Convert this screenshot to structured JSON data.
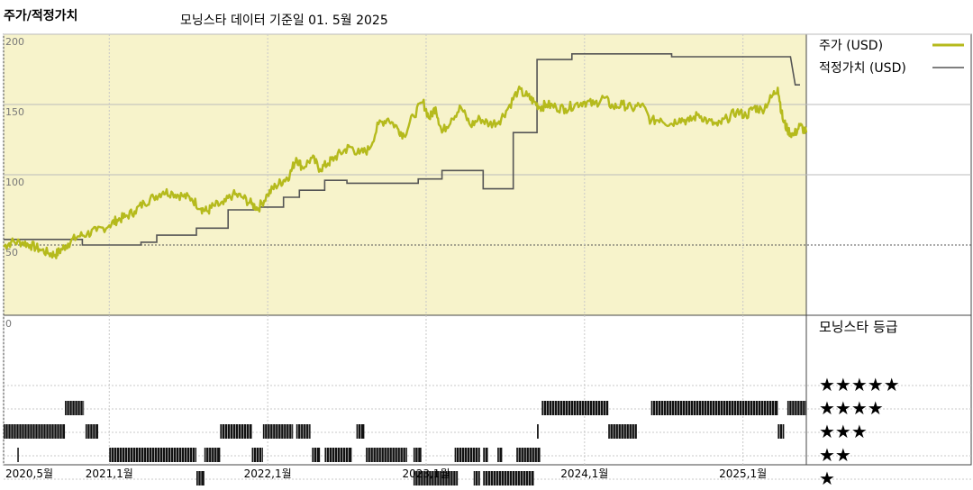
{
  "header": {
    "title": "주가/적정가치",
    "subtitle": "모닝스타 데이터 기준일 01. 5월 2025"
  },
  "colors": {
    "price": "#b5ba1c",
    "fair_value": "#555555",
    "plot_bg": "#f7f3cb",
    "grid": "#bdbdbd",
    "rating_bar": "#111111"
  },
  "chart_data": {
    "type": "line",
    "title": "주가/적정가치",
    "subtitle": "모닝스타 데이터 기준일 01. 5월 2025",
    "ylim": [
      0,
      200
    ],
    "y_ticks": [
      200,
      150,
      100,
      50
    ],
    "x_ticks": [
      {
        "label": "2020,5월",
        "t": 2020.333
      },
      {
        "label": "2021,1월",
        "t": 2021.0
      },
      {
        "label": "2022,1월",
        "t": 2022.0
      },
      {
        "label": "2023,1월",
        "t": 2023.0
      },
      {
        "label": "2024,1월",
        "t": 2024.0
      },
      {
        "label": "2025,1월",
        "t": 2025.0
      }
    ],
    "x_range": [
      2020.333,
      2025.4
    ],
    "series": [
      {
        "name": "주가 (USD)",
        "points": [
          [
            2020.333,
            49
          ],
          [
            2020.38,
            52
          ],
          [
            2020.45,
            52
          ],
          [
            2020.5,
            50
          ],
          [
            2020.56,
            47
          ],
          [
            2020.62,
            44
          ],
          [
            2020.66,
            43
          ],
          [
            2020.7,
            47
          ],
          [
            2020.74,
            51
          ],
          [
            2020.8,
            56
          ],
          [
            2020.86,
            58
          ],
          [
            2020.92,
            60
          ],
          [
            2021.0,
            64
          ],
          [
            2021.05,
            68
          ],
          [
            2021.1,
            70
          ],
          [
            2021.16,
            74
          ],
          [
            2021.22,
            80
          ],
          [
            2021.28,
            84
          ],
          [
            2021.34,
            88
          ],
          [
            2021.4,
            87
          ],
          [
            2021.46,
            85
          ],
          [
            2021.52,
            83
          ],
          [
            2021.58,
            76
          ],
          [
            2021.62,
            74
          ],
          [
            2021.66,
            78
          ],
          [
            2021.72,
            79
          ],
          [
            2021.78,
            86
          ],
          [
            2021.84,
            84
          ],
          [
            2021.9,
            79
          ],
          [
            2021.94,
            76
          ],
          [
            2022.0,
            86
          ],
          [
            2022.05,
            92
          ],
          [
            2022.1,
            96
          ],
          [
            2022.14,
            100
          ],
          [
            2022.18,
            112
          ],
          [
            2022.22,
            105
          ],
          [
            2022.28,
            112
          ],
          [
            2022.33,
            104
          ],
          [
            2022.38,
            108
          ],
          [
            2022.42,
            112
          ],
          [
            2022.48,
            117
          ],
          [
            2022.52,
            120
          ],
          [
            2022.58,
            115
          ],
          [
            2022.64,
            118
          ],
          [
            2022.7,
            136
          ],
          [
            2022.76,
            140
          ],
          [
            2022.82,
            133
          ],
          [
            2022.86,
            128
          ],
          [
            2022.92,
            142
          ],
          [
            2022.98,
            152
          ],
          [
            2023.02,
            140
          ],
          [
            2023.06,
            148
          ],
          [
            2023.1,
            130
          ],
          [
            2023.16,
            140
          ],
          [
            2023.22,
            148
          ],
          [
            2023.28,
            135
          ],
          [
            2023.34,
            140
          ],
          [
            2023.4,
            136
          ],
          [
            2023.46,
            138
          ],
          [
            2023.52,
            148
          ],
          [
            2023.58,
            160
          ],
          [
            2023.64,
            156
          ],
          [
            2023.68,
            152
          ],
          [
            2023.72,
            148
          ],
          [
            2023.76,
            150
          ],
          [
            2023.82,
            148
          ],
          [
            2023.88,
            147
          ],
          [
            2023.94,
            150
          ],
          [
            2024.0,
            152
          ],
          [
            2024.06,
            150
          ],
          [
            2024.12,
            155
          ],
          [
            2024.18,
            148
          ],
          [
            2024.24,
            150
          ],
          [
            2024.3,
            147
          ],
          [
            2024.36,
            150
          ],
          [
            2024.42,
            138
          ],
          [
            2024.48,
            140
          ],
          [
            2024.54,
            136
          ],
          [
            2024.6,
            140
          ],
          [
            2024.66,
            138
          ],
          [
            2024.72,
            143
          ],
          [
            2024.78,
            138
          ],
          [
            2024.84,
            135
          ],
          [
            2024.9,
            140
          ],
          [
            2024.96,
            145
          ],
          [
            2025.02,
            142
          ],
          [
            2025.07,
            148
          ],
          [
            2025.12,
            146
          ],
          [
            2025.18,
            155
          ],
          [
            2025.22,
            162
          ],
          [
            2025.25,
            140
          ],
          [
            2025.28,
            132
          ],
          [
            2025.32,
            128
          ],
          [
            2025.36,
            135
          ],
          [
            2025.4,
            130
          ]
        ]
      },
      {
        "name": "적정가치 (USD)",
        "points": [
          [
            2020.333,
            54
          ],
          [
            2020.83,
            54
          ],
          [
            2020.83,
            50
          ],
          [
            2021.2,
            50
          ],
          [
            2021.2,
            52
          ],
          [
            2021.3,
            52
          ],
          [
            2021.3,
            57
          ],
          [
            2021.55,
            57
          ],
          [
            2021.55,
            62
          ],
          [
            2021.75,
            62
          ],
          [
            2021.75,
            75
          ],
          [
            2021.95,
            75
          ],
          [
            2021.95,
            77
          ],
          [
            2022.1,
            77
          ],
          [
            2022.1,
            84
          ],
          [
            2022.2,
            84
          ],
          [
            2022.2,
            89
          ],
          [
            2022.36,
            89
          ],
          [
            2022.36,
            96
          ],
          [
            2022.5,
            96
          ],
          [
            2022.5,
            94
          ],
          [
            2022.95,
            94
          ],
          [
            2022.95,
            97
          ],
          [
            2023.1,
            97
          ],
          [
            2023.1,
            103
          ],
          [
            2023.36,
            103
          ],
          [
            2023.36,
            90
          ],
          [
            2023.55,
            90
          ],
          [
            2023.55,
            130
          ],
          [
            2023.7,
            130
          ],
          [
            2023.7,
            182
          ],
          [
            2023.92,
            182
          ],
          [
            2023.92,
            186
          ],
          [
            2024.55,
            186
          ],
          [
            2024.55,
            184
          ],
          [
            2025.3,
            184
          ],
          [
            2025.33,
            164
          ],
          [
            2025.36,
            164
          ]
        ]
      }
    ],
    "rating_chart": {
      "title": "모닝스타 등급",
      "zero_label": "0",
      "levels": [
        "★★★★★",
        "★★★★",
        "★★★",
        "★★",
        "★"
      ],
      "segments": [
        {
          "stars": 3,
          "t0": 2020.333,
          "t1": 2020.72
        },
        {
          "stars": 4,
          "t0": 2020.72,
          "t1": 2020.84
        },
        {
          "stars": 3,
          "t0": 2020.85,
          "t1": 2020.93
        },
        {
          "stars": 2,
          "t0": 2020.42,
          "t1": 2020.425
        },
        {
          "stars": 2,
          "t0": 2021.0,
          "t1": 2021.55
        },
        {
          "stars": 1,
          "t0": 2021.55,
          "t1": 2021.6
        },
        {
          "stars": 2,
          "t0": 2021.6,
          "t1": 2021.7
        },
        {
          "stars": 3,
          "t0": 2021.7,
          "t1": 2021.9
        },
        {
          "stars": 2,
          "t0": 2021.9,
          "t1": 2021.97
        },
        {
          "stars": 3,
          "t0": 2021.97,
          "t1": 2022.16
        },
        {
          "stars": 3,
          "t0": 2022.18,
          "t1": 2022.27
        },
        {
          "stars": 2,
          "t0": 2022.28,
          "t1": 2022.33
        },
        {
          "stars": 2,
          "t0": 2022.36,
          "t1": 2022.53
        },
        {
          "stars": 3,
          "t0": 2022.56,
          "t1": 2022.61
        },
        {
          "stars": 2,
          "t0": 2022.62,
          "t1": 2022.88
        },
        {
          "stars": 2,
          "t0": 2022.92,
          "t1": 2022.97
        },
        {
          "stars": 1,
          "t0": 2022.92,
          "t1": 2023.2
        },
        {
          "stars": 2,
          "t0": 2023.18,
          "t1": 2023.34
        },
        {
          "stars": 2,
          "t0": 2023.36,
          "t1": 2023.39
        },
        {
          "stars": 1,
          "t0": 2023.3,
          "t1": 2023.34
        },
        {
          "stars": 1,
          "t0": 2023.36,
          "t1": 2023.68
        },
        {
          "stars": 2,
          "t0": 2023.45,
          "t1": 2023.48
        },
        {
          "stars": 2,
          "t0": 2023.57,
          "t1": 2023.72
        },
        {
          "stars": 3,
          "t0": 2023.7,
          "t1": 2023.71
        },
        {
          "stars": 4,
          "t0": 2023.73,
          "t1": 2024.15
        },
        {
          "stars": 3,
          "t0": 2024.15,
          "t1": 2024.33
        },
        {
          "stars": 4,
          "t0": 2024.42,
          "t1": 2025.22
        },
        {
          "stars": 3,
          "t0": 2025.22,
          "t1": 2025.26
        },
        {
          "stars": 4,
          "t0": 2025.28,
          "t1": 2025.4
        }
      ]
    }
  }
}
